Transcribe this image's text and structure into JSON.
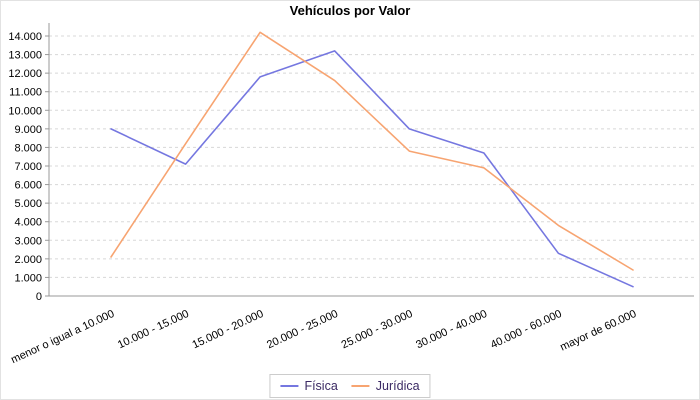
{
  "title": "Vehículos por Valor",
  "chart_data": {
    "type": "line",
    "title": "Vehículos por Valor",
    "categories": [
      "menor o igual a 10.000",
      "10.000 - 15.000",
      "15.000 - 20.000",
      "20.000 - 25.000",
      "25.000 - 30.000",
      "30.000 - 40.000",
      "40.000 - 60.000",
      "mayor de 60.000"
    ],
    "series": [
      {
        "name": "Física",
        "color": "#7577e0",
        "values": [
          9000,
          7100,
          11800,
          13200,
          9000,
          7700,
          2300,
          500
        ]
      },
      {
        "name": "Jurídica",
        "color": "#f7a471",
        "values": [
          2100,
          8200,
          14200,
          11600,
          7800,
          6900,
          3800,
          1400
        ]
      }
    ],
    "xlabel": "",
    "ylabel": "",
    "ylim": [
      0,
      14500
    ],
    "y_tick_step": 1000,
    "y_tick_labels": [
      "0",
      "1.000",
      "2.000",
      "3.000",
      "4.000",
      "5.000",
      "6.000",
      "7.000",
      "8.000",
      "9.000",
      "10.000",
      "11.000",
      "12.000",
      "13.000",
      "14.000"
    ],
    "grid": "horizontal-dashed",
    "legend_position": "bottom-center"
  },
  "colors": {
    "background": "#ffffff",
    "grid_line": "#d8d8d8",
    "axis_line": "#999999",
    "tick_label": "#000000",
    "title_text": "#000000",
    "legend_text": "#3b2a64",
    "legend_border": "#cccccc"
  }
}
